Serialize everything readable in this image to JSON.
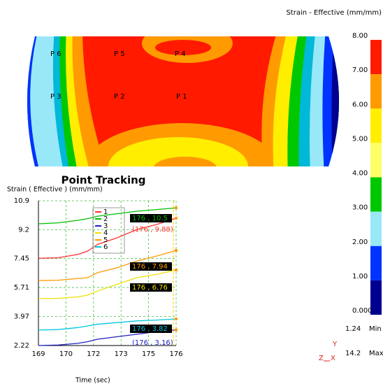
{
  "chart_data": {
    "type": "line",
    "title": "Point Tracking",
    "y_label": "Strain ( Effective )  (mm/mm)",
    "x_label": "Time (sec)",
    "x": [
      169,
      170,
      171,
      171.5,
      172,
      173,
      174,
      175,
      176
    ],
    "xlim": [
      169,
      176
    ],
    "xticks": [
      169,
      {
        "value": 170.4,
        "label": "170"
      },
      {
        "value": 171.8,
        "label": "172"
      },
      {
        "value": 173.2,
        "label": "173"
      },
      {
        "value": 174.6,
        "label": "175"
      },
      176
    ],
    "ylim": [
      2.22,
      10.93
    ],
    "yticks": [
      2.22,
      3.97,
      5.71,
      7.45,
      {
        "value": 9.19,
        "label": "9.2"
      },
      {
        "value": 10.93,
        "label": "10.9"
      }
    ],
    "grid": true,
    "series": [
      {
        "name": "1",
        "color": "#ff3030",
        "values": [
          7.47,
          7.5,
          7.7,
          7.9,
          8.3,
          8.7,
          9.2,
          9.5,
          9.88
        ],
        "value_labels": [
          null,
          null,
          null,
          null,
          null,
          null,
          null,
          null,
          "(176 , 9.88)"
        ]
      },
      {
        "name": "2",
        "color": "#00c000",
        "values": [
          9.54,
          9.6,
          9.75,
          9.85,
          10.0,
          10.15,
          10.3,
          10.4,
          10.5
        ],
        "value_labels": [
          null,
          null,
          null,
          null,
          null,
          null,
          null,
          null,
          "176 , 10.5"
        ]
      },
      {
        "name": "3",
        "color": "#2020c0",
        "values": [
          2.22,
          2.25,
          2.35,
          2.45,
          2.6,
          2.75,
          2.9,
          3.05,
          3.16
        ],
        "value_labels": [
          null,
          null,
          null,
          null,
          null,
          null,
          null,
          null,
          "(176 , 3.16)"
        ]
      },
      {
        "name": "4",
        "color": "#f0e000",
        "values": [
          5.04,
          5.06,
          5.15,
          5.25,
          5.5,
          5.9,
          6.3,
          6.5,
          6.76
        ],
        "value_labels": [
          null,
          null,
          null,
          null,
          null,
          null,
          null,
          null,
          "176 , 6.76"
        ]
      },
      {
        "name": "5",
        "color": "#ff9a00",
        "values": [
          6.13,
          6.15,
          6.25,
          6.3,
          6.6,
          6.9,
          7.3,
          7.6,
          7.94
        ],
        "value_labels": [
          null,
          null,
          null,
          null,
          null,
          null,
          null,
          null,
          "176 , 7.94"
        ]
      },
      {
        "name": "6",
        "color": "#00c8e0",
        "values": [
          3.15,
          3.18,
          3.3,
          3.4,
          3.5,
          3.6,
          3.7,
          3.75,
          3.82
        ],
        "value_labels": [
          null,
          null,
          null,
          null,
          null,
          null,
          null,
          null,
          "176 , 3.82"
        ]
      }
    ]
  },
  "contour": {
    "points": [
      {
        "label": "P 6"
      },
      {
        "label": "P 5"
      },
      {
        "label": "P 4"
      },
      {
        "label": "P 3"
      },
      {
        "label": "P 2"
      },
      {
        "label": "P 1"
      }
    ]
  },
  "colorbar": {
    "title": "Strain - Effective (mm/mm)",
    "ticks": [
      "8.00",
      "7.00",
      "6.00",
      "5.00",
      "4.00",
      "3.00",
      "2.00",
      "1.00",
      "0.000"
    ],
    "colors": [
      "#ff1a00",
      "#ff9a00",
      "#ffee00",
      "#ffff66",
      "#00c800",
      "#99e8f8",
      "#0033ff",
      "#000090"
    ],
    "min": {
      "value": "1.24",
      "label": "Min"
    },
    "max": {
      "value": "14.2",
      "label": "Max"
    }
  },
  "axis_triad": {
    "y": "Y",
    "z": "Z",
    "x": "X"
  }
}
